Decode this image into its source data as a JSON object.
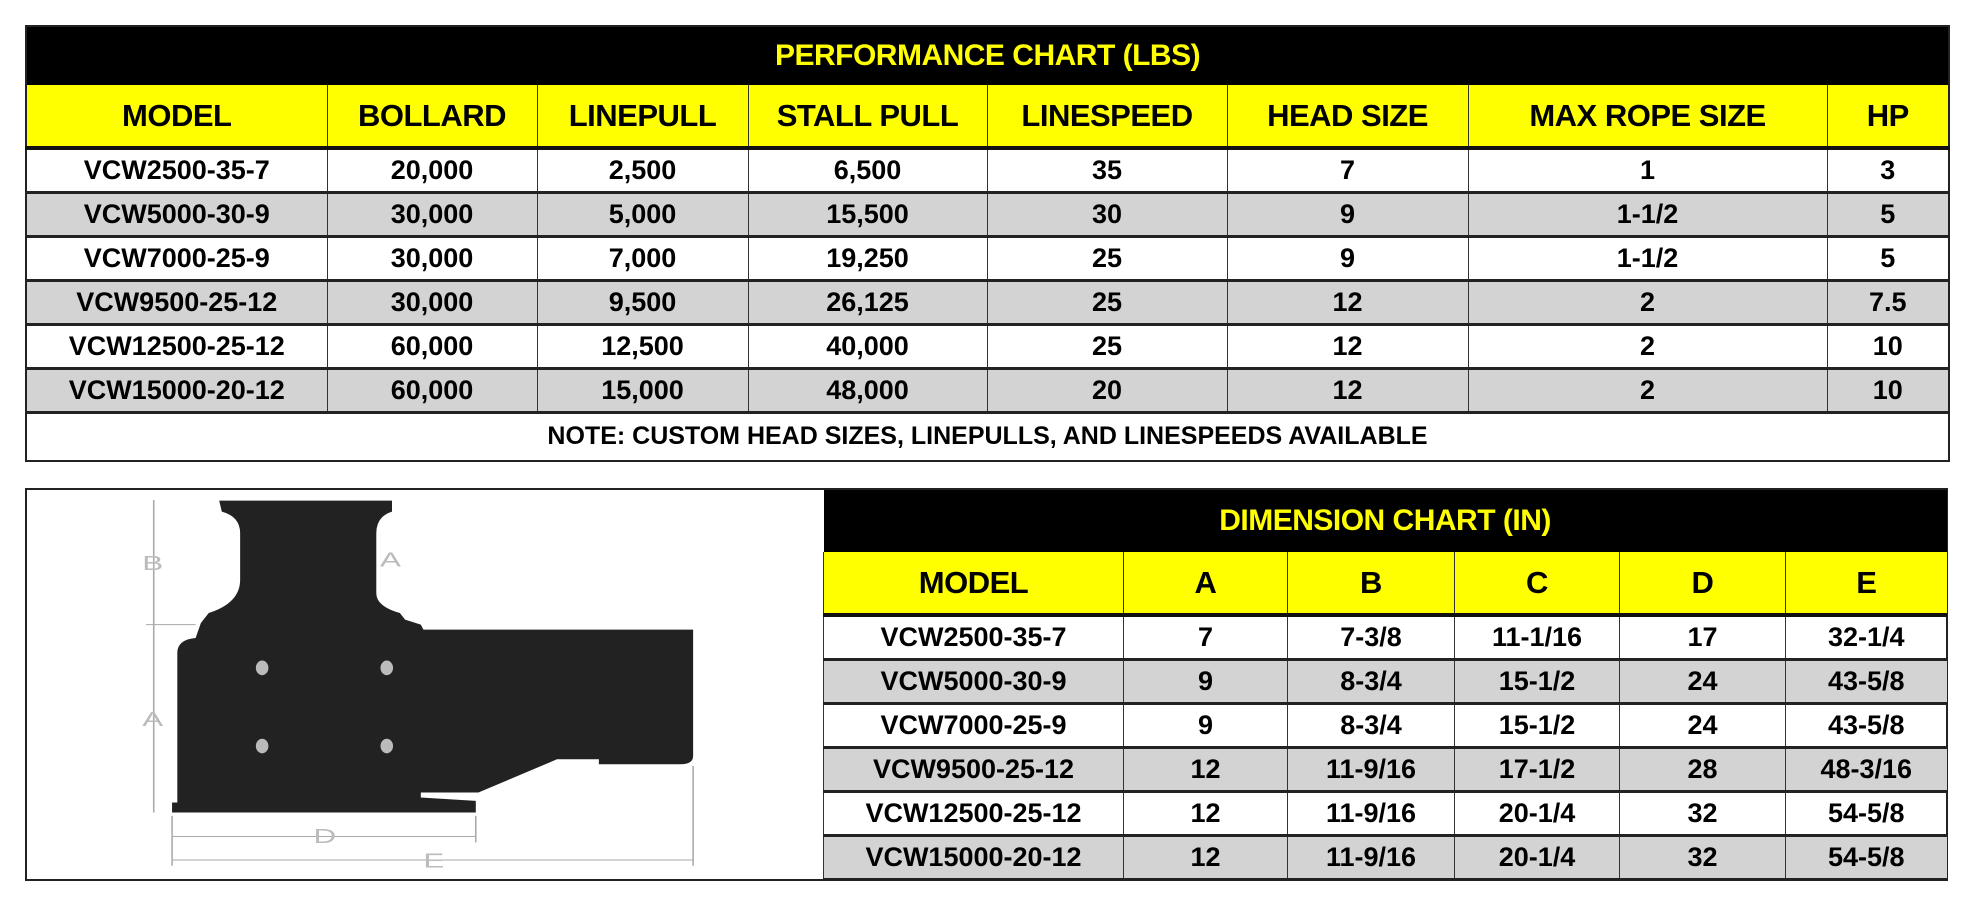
{
  "colors": {
    "header_bg": "#000000",
    "title_text": "#ffff00",
    "column_header_bg": "#ffff00",
    "alt_row_bg": "#d3d3d3"
  },
  "performance": {
    "title": "PERFORMANCE CHART (LBS)",
    "columns": [
      "MODEL",
      "BOLLARD",
      "LINEPULL",
      "STALL PULL",
      "LINESPEED",
      "HEAD SIZE",
      "MAX ROPE SIZE",
      "HP"
    ],
    "rows": [
      [
        "VCW2500-35-7",
        "20,000",
        "2,500",
        "6,500",
        "35",
        "7",
        "1",
        "3"
      ],
      [
        "VCW5000-30-9",
        "30,000",
        "5,000",
        "15,500",
        "30",
        "9",
        "1-1/2",
        "5"
      ],
      [
        "VCW7000-25-9",
        "30,000",
        "7,000",
        "19,250",
        "25",
        "9",
        "1-1/2",
        "5"
      ],
      [
        "VCW9500-25-12",
        "30,000",
        "9,500",
        "26,125",
        "25",
        "12",
        "2",
        "7.5"
      ],
      [
        "VCW12500-25-12",
        "60,000",
        "12,500",
        "40,000",
        "25",
        "12",
        "2",
        "10"
      ],
      [
        "VCW15000-20-12",
        "60,000",
        "15,000",
        "48,000",
        "20",
        "12",
        "2",
        "10"
      ]
    ],
    "note": "NOTE: CUSTOM HEAD SIZES, LINEPULLS, AND LINESPEEDS AVAILABLE"
  },
  "drawing": {
    "labels": {
      "a_side": "A",
      "a_head": "A",
      "b": "B",
      "d": "D",
      "e": "E"
    }
  },
  "dimension": {
    "title": "DIMENSION CHART (IN)",
    "columns": [
      "MODEL",
      "A",
      "B",
      "C",
      "D",
      "E"
    ],
    "rows": [
      [
        "VCW2500-35-7",
        "7",
        "7-3/8",
        "11-1/16",
        "17",
        "32-1/4"
      ],
      [
        "VCW5000-30-9",
        "9",
        "8-3/4",
        "15-1/2",
        "24",
        "43-5/8"
      ],
      [
        "VCW7000-25-9",
        "9",
        "8-3/4",
        "15-1/2",
        "24",
        "43-5/8"
      ],
      [
        "VCW9500-25-12",
        "12",
        "11-9/16",
        "17-1/2",
        "28",
        "48-3/16"
      ],
      [
        "VCW12500-25-12",
        "12",
        "11-9/16",
        "20-1/4",
        "32",
        "54-5/8"
      ],
      [
        "VCW15000-20-12",
        "12",
        "11-9/16",
        "20-1/4",
        "32",
        "54-5/8"
      ]
    ]
  }
}
